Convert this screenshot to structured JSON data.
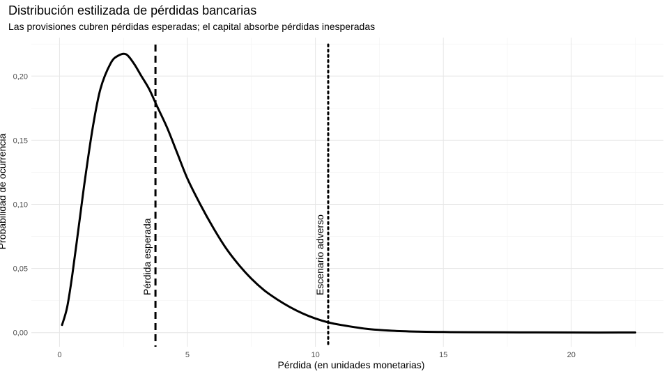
{
  "chart_data": {
    "type": "line",
    "title": "Distribución estilizada de pérdidas bancarias",
    "subtitle": "Las provisiones cubren pérdidas esperadas; el capital absorbe pérdidas inesperadas",
    "xlabel": "Pérdida (en unidades monetarias)",
    "ylabel": "Probabilidad de ocurrencia",
    "xlim": [
      -1.1,
      23.6
    ],
    "ylim": [
      -0.011,
      0.23
    ],
    "x_ticks": [
      0,
      5,
      10,
      15,
      20
    ],
    "x_tick_labels": [
      "0",
      "5",
      "10",
      "15",
      "20"
    ],
    "y_ticks": [
      0,
      0.05,
      0.1,
      0.15,
      0.2
    ],
    "y_tick_labels": [
      "0,00",
      "0,05",
      "0,10",
      "0,15",
      "0,20"
    ],
    "grid": true,
    "series": [
      {
        "x": [
          0.1,
          0.3,
          0.5,
          0.8,
          1.0,
          1.3,
          1.6,
          2.0,
          2.3,
          2.6,
          2.9,
          3.2,
          3.5,
          3.8,
          4.2,
          4.6,
          5.0,
          5.5,
          6.0,
          6.5,
          7.0,
          7.5,
          8.0,
          8.5,
          9.0,
          9.5,
          10.0,
          10.5,
          11.0,
          12.0,
          13.0,
          14.0,
          15.0,
          16.0,
          18.0,
          20.0,
          22.5
        ],
        "y": [
          0.006,
          0.02,
          0.045,
          0.09,
          0.12,
          0.16,
          0.19,
          0.21,
          0.216,
          0.217,
          0.21,
          0.2,
          0.19,
          0.177,
          0.16,
          0.14,
          0.12,
          0.1,
          0.082,
          0.066,
          0.053,
          0.042,
          0.033,
          0.026,
          0.02,
          0.015,
          0.011,
          0.008,
          0.006,
          0.003,
          0.0015,
          0.0008,
          0.0005,
          0.0003,
          0.0002,
          0.0001,
          0.0001
        ],
        "color": "#000000"
      }
    ],
    "annotations": [
      {
        "label": "Pérdida esperada",
        "x": 3.75,
        "linestyle": "dashed"
      },
      {
        "label": "Escenario adverso",
        "x": 10.5,
        "linestyle": "dotted"
      }
    ]
  }
}
